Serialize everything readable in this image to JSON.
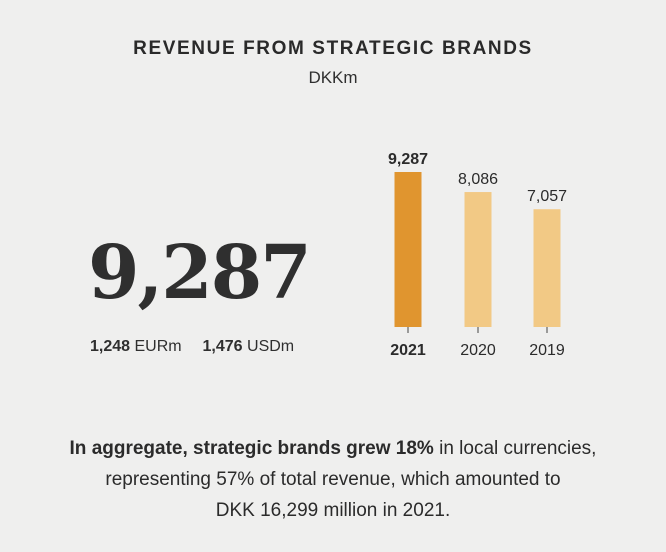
{
  "header": {
    "title": "REVENUE FROM STRATEGIC BRANDS",
    "unit": "DKKm"
  },
  "highlight": {
    "value": "9,287",
    "eur_value": "1,248",
    "eur_unit": "EURm",
    "usd_value": "1,476",
    "usd_unit": "USDm"
  },
  "summary": {
    "bold_part": "In aggregate, strategic brands grew 18%",
    "line1_rest": " in local currencies,",
    "line2": "representing 57% of total revenue, which amounted to",
    "line3": "DKK 16,299 million in 2021."
  },
  "colors": {
    "highlight_bar": "#e0952f",
    "other_bars": "#f2c985",
    "text": "#2b2b2b",
    "background": "#efefee"
  },
  "chart_data": {
    "type": "bar",
    "title": "REVENUE FROM STRATEGIC BRANDS",
    "ylabel": "DKKm",
    "categories": [
      "2021",
      "2020",
      "2019"
    ],
    "values": [
      9287,
      8086,
      7057
    ],
    "value_labels": [
      "9,287",
      "8,086",
      "7,057"
    ],
    "highlight_category": "2021",
    "ylim": [
      0,
      9287
    ],
    "grid": false
  }
}
